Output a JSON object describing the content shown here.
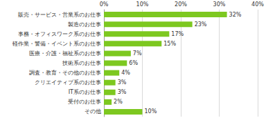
{
  "chart_data": {
    "type": "bar",
    "orientation": "horizontal",
    "categories": [
      "販売・サービス・営業系のお仕事",
      "製造のお仕事",
      "事務・オフィスワーク系のお仕事",
      "軽作業・警備・イベント系のお仕事",
      "医療・介護・福祉系のお仕事",
      "技術系のお仕事",
      "調査・教育・その他のお仕事",
      "クリエイティブ系のお仕事",
      "IT系のお仕事",
      "受付のお仕事",
      "その他"
    ],
    "values": [
      32,
      23,
      17,
      15,
      7,
      6,
      4,
      3,
      3,
      2,
      10
    ],
    "value_labels": [
      "32%",
      "23%",
      "17%",
      "15%",
      "7%",
      "6%",
      "4%",
      "3%",
      "3%",
      "2%",
      "10%"
    ],
    "color": "#7dc820",
    "xlim": [
      0,
      40
    ],
    "xticks": [
      {
        "value": 0,
        "label": "0%"
      },
      {
        "value": 10,
        "label": "10%"
      },
      {
        "value": 20,
        "label": "20%"
      },
      {
        "value": 30,
        "label": "30%"
      },
      {
        "value": 40,
        "label": "40%"
      }
    ],
    "grid": true,
    "data_labels": true
  }
}
